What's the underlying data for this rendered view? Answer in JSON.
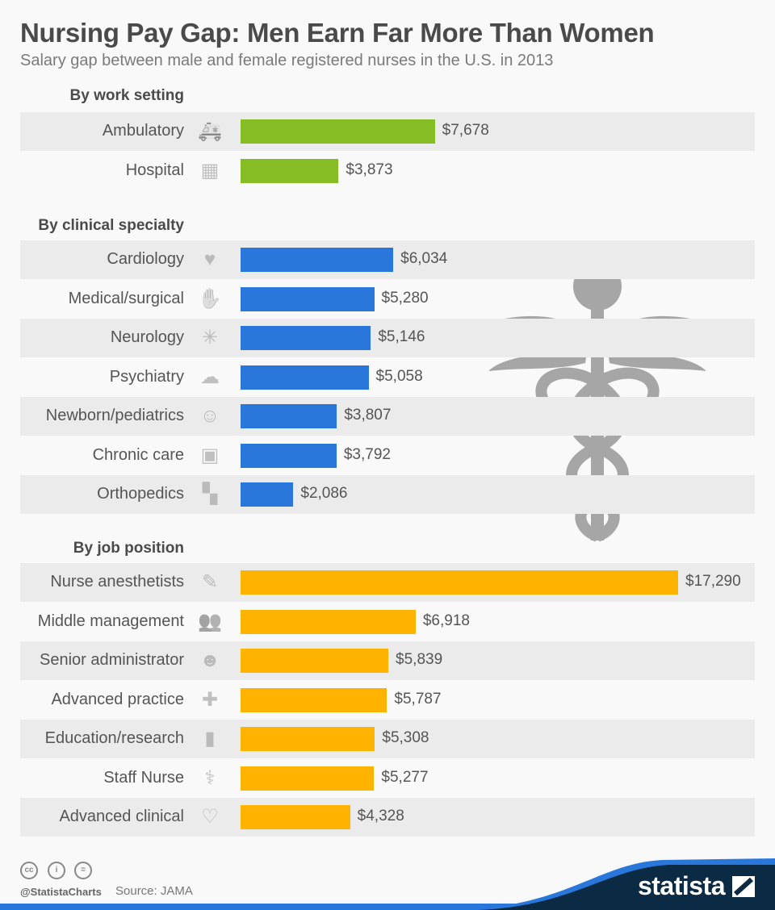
{
  "chart_data": {
    "type": "bar",
    "orientation": "horizontal",
    "title": "Nursing Pay Gap: Men Earn Far More Than Women",
    "subtitle": "Salary gap between male and female registered nurses in the U.S. in 2013",
    "groups": [
      {
        "name": "By work setting",
        "color": "#86bc24",
        "categories": [
          "Ambulatory",
          "Hospital"
        ],
        "icons": [
          "ambulance-icon",
          "hospital-icon"
        ],
        "values": [
          7678,
          3873
        ],
        "labels": [
          "$7,678",
          "$3,873"
        ]
      },
      {
        "name": "By clinical specialty",
        "color": "#2a77dc",
        "categories": [
          "Cardiology",
          "Medical/surgical",
          "Neurology",
          "Psychiatry",
          "Newborn/pediatrics",
          "Chronic care",
          "Orthopedics"
        ],
        "icons": [
          "heart-icon",
          "hand-icon",
          "neuron-icon",
          "brain-icon",
          "baby-icon",
          "xray-pelvis-icon",
          "knee-icon"
        ],
        "values": [
          6034,
          5280,
          5146,
          5058,
          3807,
          3792,
          2086
        ],
        "labels": [
          "$6,034",
          "$5,280",
          "$5,146",
          "$5,058",
          "$3,807",
          "$3,792",
          "$2,086"
        ]
      },
      {
        "name": "By job position",
        "color": "#fdb300",
        "categories": [
          "Nurse anesthetists",
          "Middle management",
          "Senior administrator",
          "Advanced practice",
          "Education/research",
          "Staff Nurse",
          "Advanced clinical"
        ],
        "icons": [
          "syringe-icon",
          "users-icon",
          "doctor-icon",
          "bandage-icon",
          "book-icon",
          "stethoscope-icon",
          "heart-hands-icon"
        ],
        "values": [
          17290,
          6918,
          5839,
          5787,
          5308,
          5277,
          4328
        ],
        "labels": [
          "$17,290",
          "$6,918",
          "$5,839",
          "$5,787",
          "$5,308",
          "$5,277",
          "$4,328"
        ]
      }
    ]
  },
  "footer": {
    "handle": "@StatistaCharts",
    "source": "Source: JAMA",
    "brand": "statista",
    "license_icons": [
      "cc-icon",
      "attribution-icon",
      "no-derivatives-icon"
    ]
  },
  "colors": {
    "background": "#f9f9f9",
    "band": "#ebebeb",
    "footer_dark": "#0b2a44",
    "footer_blue": "#2a77dc"
  }
}
